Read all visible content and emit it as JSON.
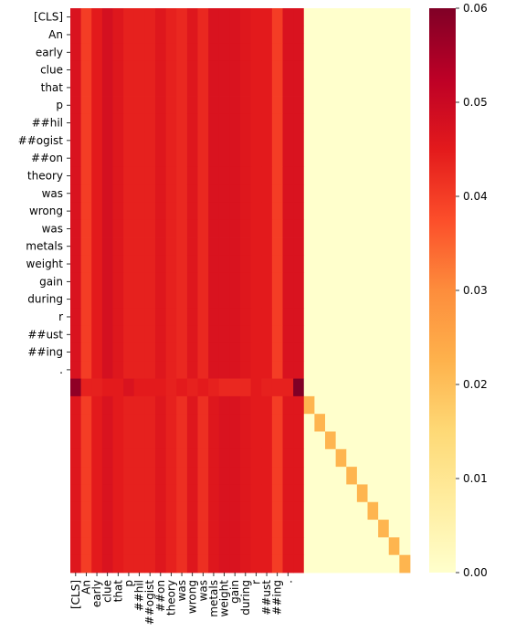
{
  "chart_data": {
    "type": "heatmap",
    "title": "",
    "xlabel": "",
    "ylabel": "",
    "colormap": "YlOrRd",
    "vmin": 0.0,
    "vmax": 0.06,
    "colorbar_ticks": [
      "0.00",
      "0.01",
      "0.02",
      "0.03",
      "0.04",
      "0.05",
      "0.06"
    ],
    "colorbar_tick_values": [
      0.0,
      0.01,
      0.02,
      0.03,
      0.04,
      0.05,
      0.06
    ],
    "n_rows": 32,
    "n_cols": 32,
    "y_tick_labels": [
      "[CLS]",
      "An",
      "early",
      "clue",
      "that",
      "p",
      "##hil",
      "##ogist",
      "##on",
      "theory",
      "was",
      "wrong",
      "was",
      "metals",
      "weight",
      "gain",
      "during",
      "r",
      "##ust",
      "##ing",
      "."
    ],
    "x_tick_labels": [
      "[CLS]",
      "An",
      "early",
      "clue",
      "that",
      "p",
      "##hil",
      "##ogist",
      "##on",
      "theory",
      "was",
      "wrong",
      "was",
      "metals",
      "weight",
      "gain",
      "during",
      "r",
      "##ust",
      "##ing",
      "."
    ],
    "text_row_values": [
      0.047,
      0.04,
      0.045,
      0.048,
      0.046,
      0.044,
      0.044,
      0.044,
      0.046,
      0.044,
      0.043,
      0.046,
      0.043,
      0.047,
      0.047,
      0.047,
      0.046,
      0.045,
      0.045,
      0.04,
      0.047,
      0.047
    ],
    "sep_row_values": [
      0.058,
      0.044,
      0.044,
      0.045,
      0.045,
      0.047,
      0.045,
      0.045,
      0.045,
      0.044,
      0.045,
      0.044,
      0.045,
      0.044,
      0.043,
      0.043,
      0.043,
      0.045,
      0.044,
      0.044,
      0.044,
      0.061
    ],
    "pad_rows_left_values": [
      0.046,
      0.04,
      0.045,
      0.047,
      0.045,
      0.044,
      0.044,
      0.044,
      0.046,
      0.044,
      0.042,
      0.046,
      0.042,
      0.046,
      0.047,
      0.047,
      0.046,
      0.045,
      0.045,
      0.04,
      0.046,
      0.046
    ],
    "pad_diagonal_value": 0.022,
    "pad_offdiagonal_value": 0.0
  }
}
